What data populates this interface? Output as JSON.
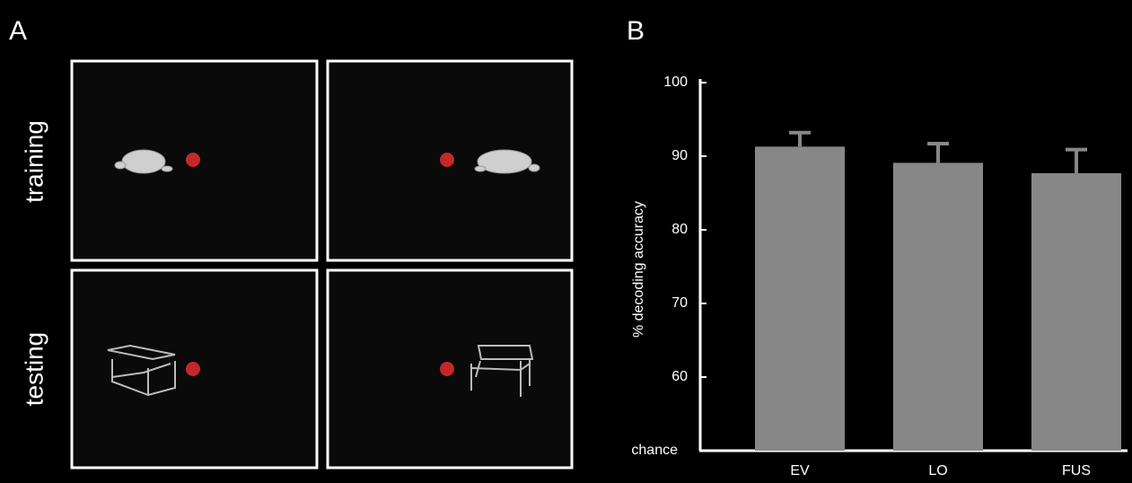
{
  "panel_a": {
    "label": "A",
    "row_labels": [
      "training",
      "testing"
    ]
  },
  "panel_b": {
    "label": "B"
  },
  "chart_data": {
    "type": "bar",
    "y_label": "% decoding accuracy",
    "categories": [
      "EV",
      "LO",
      "FUS"
    ],
    "values": [
      91.3,
      89.1,
      87.7
    ],
    "errors": [
      1.9,
      2.6,
      3.2
    ],
    "color": "#878787",
    "ylim": [
      50,
      100
    ],
    "yticks": [
      {
        "value": 50,
        "label": "chance"
      },
      60,
      70,
      80,
      90,
      100
    ],
    "grid": false
  }
}
